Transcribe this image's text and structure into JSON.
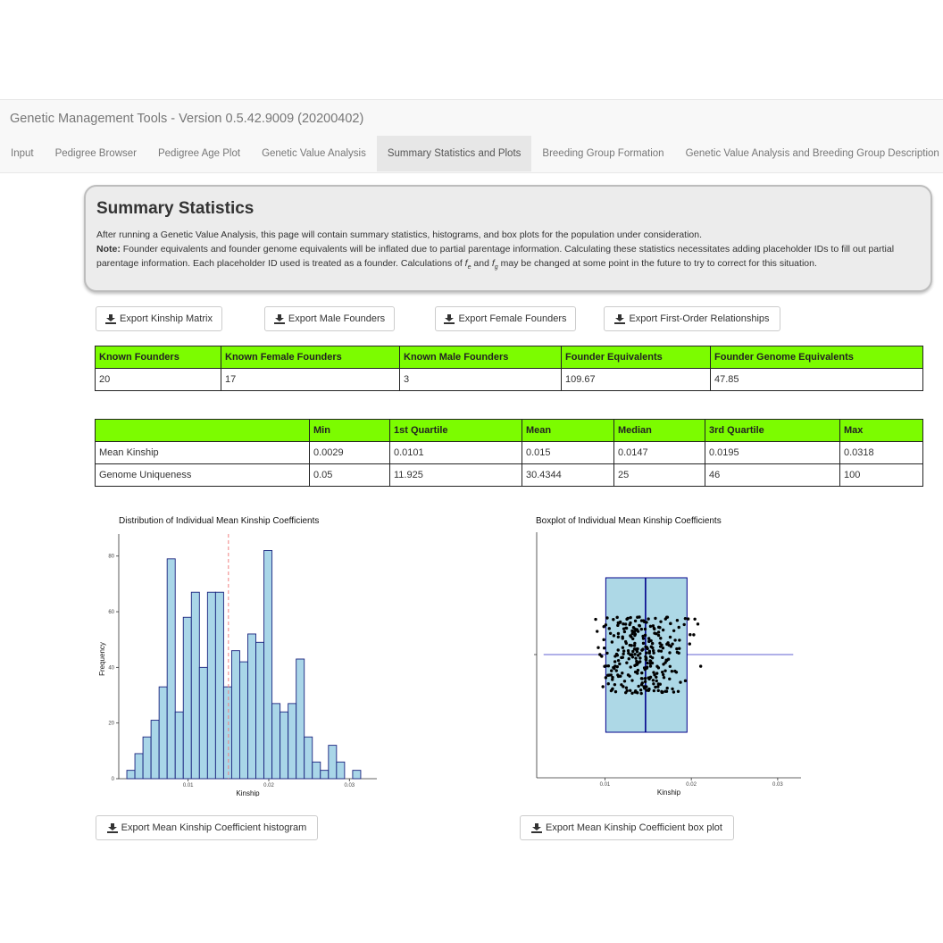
{
  "app": {
    "title": "Genetic Management Tools - Version 0.5.42.9009 (20200402)",
    "tabs": [
      {
        "label": "Input",
        "active": false
      },
      {
        "label": "Pedigree Browser",
        "active": false
      },
      {
        "label": "Pedigree Age Plot",
        "active": false
      },
      {
        "label": "Genetic Value Analysis",
        "active": false
      },
      {
        "label": "Summary Statistics and Plots",
        "active": true
      },
      {
        "label": "Breeding Group Formation",
        "active": false
      },
      {
        "label": "Genetic Value Analysis and Breeding Group Description",
        "active": false
      }
    ]
  },
  "summary": {
    "heading": "Summary Statistics",
    "intro": "After running a Genetic Value Analysis, this page will contain summary statistics, histograms, and box plots for the population under consideration.",
    "note_label": "Note:",
    "note_part1": " Founder equivalents and founder genome equivalents will be inflated due to partial parentage information. Calculating these statistics necessitates adding placeholder IDs to fill out partial parentage information. Each placeholder ID used is treated as a founder. Calculations of ",
    "fe_symbol": "f",
    "fe_sub": "e",
    "note_and": " and ",
    "fg_symbol": "f",
    "fg_sub": "g",
    "note_part2": " may be changed at some point in the future to try to correct for this situation."
  },
  "exports": {
    "kinship_matrix": "Export Kinship Matrix",
    "male_founders": "Export Male Founders",
    "female_founders": "Export Female Founders",
    "first_order": "Export First-Order Relationships",
    "histogram": "Export Mean Kinship Coefficient histogram",
    "boxplot": "Export Mean Kinship Coefficient box plot"
  },
  "founders_table": {
    "headers": [
      "Known Founders",
      "Known Female Founders",
      "Known Male Founders",
      "Founder Equivalents",
      "Founder Genome Equivalents"
    ],
    "row": [
      "20",
      "17",
      "3",
      "109.67",
      "47.85"
    ]
  },
  "quartile_table": {
    "headers": [
      "",
      "Min",
      "1st Quartile",
      "Mean",
      "Median",
      "3rd Quartile",
      "Max"
    ],
    "rows": [
      [
        "Mean Kinship",
        "0.0029",
        "0.0101",
        "0.015",
        "0.0147",
        "0.0195",
        "0.0318"
      ],
      [
        "Genome Uniqueness",
        "0.05",
        "11.925",
        "30.4344",
        "25",
        "46",
        "100"
      ]
    ]
  },
  "chart_data": [
    {
      "type": "bar",
      "title": "Distribution of Individual Mean Kinship Coefficients",
      "xlabel": "Kinship",
      "ylabel": "Frequency",
      "xlim": [
        0.0014,
        0.0334
      ],
      "ylim": [
        0,
        86
      ],
      "xticks": [
        {
          "value": 0.01,
          "label": "0.01"
        },
        {
          "value": 0.02,
          "label": "0.02"
        },
        {
          "value": 0.03,
          "label": "0.03"
        }
      ],
      "yticks": [
        {
          "value": 0,
          "label": "0"
        },
        {
          "value": 20,
          "label": "20"
        },
        {
          "value": 40,
          "label": "40"
        },
        {
          "value": 60,
          "label": "60"
        },
        {
          "value": 80,
          "label": "80"
        }
      ],
      "bin_start": 0.0024,
      "bin_width": 0.001,
      "values": [
        3,
        9,
        15,
        21,
        33,
        79,
        24,
        58,
        67,
        40,
        67,
        67,
        33,
        46,
        42,
        52,
        49,
        82,
        27,
        24,
        27,
        43,
        15,
        6,
        3,
        12,
        6,
        0,
        3
      ],
      "mean_line": 0.015,
      "colors": {
        "fill": "#a9d6e8",
        "stroke": "#1a237e",
        "mean_line": "#f08080"
      }
    },
    {
      "type": "boxplot",
      "title": "Boxplot of Individual Mean Kinship Coefficients",
      "xlabel": "Kinship",
      "xlim": [
        0.0021,
        0.0327
      ],
      "xticks": [
        {
          "value": 0.01,
          "label": "0.01"
        },
        {
          "value": 0.02,
          "label": "0.02"
        },
        {
          "value": 0.03,
          "label": "0.03"
        }
      ],
      "stats": {
        "min": 0.0029,
        "q1": 0.0101,
        "median": 0.0147,
        "q3": 0.0195,
        "max": 0.0318
      },
      "points_count": 300,
      "colors": {
        "box_fill": "#add8e6",
        "box_stroke": "#00008b",
        "whisker": "#6060d0",
        "points": "#000000"
      }
    }
  ]
}
